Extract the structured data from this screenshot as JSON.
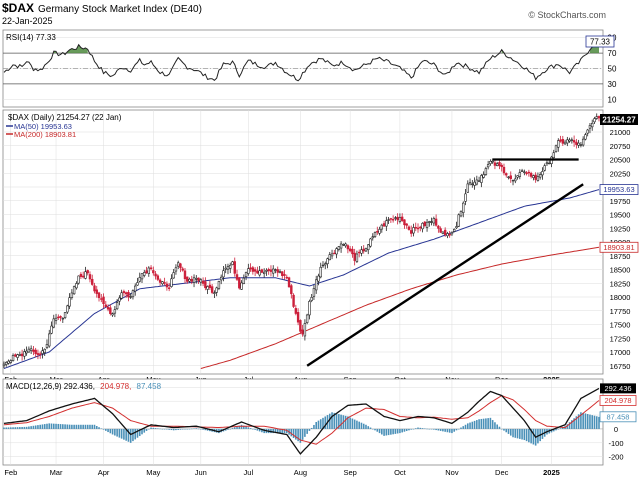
{
  "header": {
    "symbol": "$DAX",
    "name": "Germany Stock Market Index (DE40)",
    "date": "22-Jan-2025",
    "credit": "© StockCharts.com"
  },
  "colors": {
    "price_up": "#222222",
    "price_down": "#cc1f3a",
    "ma50": "#283593",
    "ma200": "#c62828",
    "rsi": "#222222",
    "rsi_fill": "#4e8a3e",
    "macd": "#111111",
    "signal": "#d32f2f",
    "histogram": "#4a90b8",
    "grid": "#dddddd",
    "trendline": "#000000"
  },
  "chart_data": [
    {
      "type": "line",
      "panel": "rsi",
      "title": "RSI(14) 77.33",
      "value_label": "77.33",
      "ylim": [
        0,
        100
      ],
      "ticks": [
        "90",
        "70",
        "50",
        "30",
        "10"
      ],
      "reference_lines": [
        30,
        70
      ],
      "series": [
        {
          "name": "RSI(14)",
          "x": [
            0,
            4,
            8,
            10,
            13,
            16,
            19,
            22,
            26,
            29,
            33,
            37,
            40,
            44,
            48,
            52,
            56,
            60,
            62,
            65,
            69,
            73,
            77,
            81,
            85,
            89,
            93,
            97,
            101,
            104,
            108,
            112,
            116,
            120,
            125,
            130,
            135,
            140,
            145,
            150,
            155,
            160,
            165,
            170,
            175,
            180,
            185,
            190,
            195,
            200,
            205,
            210,
            215,
            220,
            225,
            230,
            235,
            240,
            245,
            250,
            255,
            260,
            263
          ],
          "values": [
            45,
            55,
            52,
            60,
            50,
            48,
            57,
            70,
            68,
            74,
            78,
            76,
            60,
            45,
            40,
            52,
            48,
            60,
            55,
            58,
            45,
            41,
            62,
            52,
            48,
            40,
            35,
            55,
            58,
            42,
            60,
            55,
            52,
            58,
            45,
            36,
            56,
            63,
            54,
            58,
            48,
            55,
            63,
            58,
            50,
            38,
            60,
            55,
            40,
            58,
            52,
            45,
            63,
            72,
            62,
            52,
            38,
            50,
            56,
            45,
            60,
            80,
            77
          ]
        }
      ]
    },
    {
      "type": "candlestick",
      "panel": "price",
      "title": "$DAX (Daily) 21254.27 (22 Jan)",
      "last_label": "21254.27",
      "ylim": [
        16600,
        21400
      ],
      "ticks": [
        "21000",
        "20750",
        "20500",
        "20250",
        "20000",
        "19750",
        "19500",
        "19250",
        "19000",
        "18750",
        "18500",
        "18250",
        "18000",
        "17750",
        "17500",
        "17250",
        "17000",
        "16750"
      ],
      "x_labels": [
        "Feb",
        "Mar",
        "Apr",
        "May",
        "Jun",
        "Jul",
        "Aug",
        "Sep",
        "Oct",
        "Nov",
        "Dec",
        "2025"
      ],
      "x_label_index": [
        3,
        23,
        44,
        66,
        87,
        108,
        131,
        153,
        175,
        198,
        220,
        242
      ],
      "close_anchors": {
        "x": [
          0,
          4,
          8,
          10,
          13,
          16,
          19,
          22,
          26,
          29,
          33,
          37,
          40,
          44,
          48,
          52,
          56,
          60,
          62,
          65,
          69,
          73,
          77,
          81,
          85,
          89,
          93,
          97,
          101,
          104,
          108,
          112,
          116,
          120,
          125,
          129,
          131,
          132,
          133,
          135,
          140,
          145,
          150,
          155,
          160,
          165,
          170,
          175,
          180,
          185,
          190,
          195,
          200,
          205,
          210,
          215,
          220,
          225,
          230,
          235,
          240,
          245,
          250,
          255,
          260,
          263
        ],
        "values": [
          16800,
          16900,
          16950,
          17050,
          17000,
          16950,
          17150,
          17600,
          17650,
          17950,
          18350,
          18450,
          18150,
          17850,
          17700,
          18100,
          18000,
          18400,
          18450,
          18550,
          18250,
          18200,
          18600,
          18300,
          18350,
          18200,
          18100,
          18500,
          18600,
          18200,
          18550,
          18450,
          18450,
          18500,
          18350,
          17700,
          17400,
          17300,
          17500,
          17900,
          18550,
          18800,
          19000,
          18700,
          18900,
          19200,
          19400,
          19450,
          19200,
          19300,
          19400,
          19100,
          19300,
          20050,
          20150,
          20450,
          20350,
          20100,
          20300,
          20150,
          20400,
          20800,
          20850,
          20750,
          21200,
          21254
        ]
      },
      "ma50": {
        "name": "MA(50)",
        "label": "MA(50) 19953.63",
        "value_label": "19953.63",
        "x": [
          0,
          20,
          40,
          60,
          80,
          100,
          120,
          135,
          150,
          170,
          190,
          210,
          230,
          250,
          263
        ],
        "values": [
          16700,
          17000,
          17700,
          18150,
          18250,
          18350,
          18350,
          18200,
          18400,
          18800,
          19050,
          19350,
          19650,
          19800,
          19953
        ]
      },
      "ma200": {
        "name": "MA(200)",
        "label": "MA(200) 18903.81",
        "value_label": "18903.81",
        "x": [
          87,
          100,
          120,
          140,
          160,
          180,
          200,
          220,
          240,
          263
        ],
        "values": [
          16700,
          16850,
          17150,
          17500,
          17850,
          18150,
          18400,
          18600,
          18750,
          18904
        ]
      },
      "annotations": [
        {
          "type": "horizontal-line",
          "x": [
            216,
            254
          ],
          "value": 20500
        },
        {
          "type": "trendline",
          "x": [
            134,
            256
          ],
          "values": [
            16750,
            20050
          ]
        }
      ]
    },
    {
      "type": "bar",
      "panel": "macd",
      "title": "MACD(12,26,9) 292.436, 204.978, 87.458",
      "legend": {
        "macd": "MACD(12,26,9) 292.436,",
        "signal": "204.978,",
        "hist": "87.458"
      },
      "values_labels": [
        "292.436",
        "204.978",
        "87.458"
      ],
      "ylim": [
        -260,
        360
      ],
      "ticks": [
        "300",
        "200",
        "100",
        "0",
        "-100",
        "-200"
      ],
      "x_labels": [
        "Feb",
        "Mar",
        "Apr",
        "May",
        "Jun",
        "Jul",
        "Aug",
        "Sep",
        "Oct",
        "Nov",
        "Dec",
        "2025"
      ],
      "x_label_index": [
        3,
        23,
        44,
        66,
        87,
        108,
        131,
        153,
        175,
        198,
        220,
        242
      ],
      "macd_anchors": {
        "x": [
          0,
          10,
          20,
          30,
          40,
          48,
          56,
          65,
          75,
          85,
          95,
          105,
          115,
          125,
          131,
          138,
          145,
          152,
          160,
          168,
          175,
          183,
          190,
          198,
          205,
          210,
          215,
          220,
          225,
          230,
          235,
          240,
          248,
          255,
          263
        ],
        "values": [
          40,
          60,
          130,
          180,
          220,
          110,
          -40,
          30,
          10,
          20,
          -20,
          50,
          -10,
          -40,
          -180,
          -60,
          90,
          170,
          180,
          90,
          60,
          90,
          80,
          40,
          120,
          200,
          270,
          240,
          150,
          60,
          -60,
          -20,
          30,
          220,
          292
        ]
      },
      "signal_anchors": {
        "x": [
          0,
          10,
          20,
          30,
          40,
          48,
          56,
          65,
          75,
          85,
          95,
          105,
          115,
          125,
          131,
          138,
          145,
          152,
          160,
          168,
          175,
          183,
          190,
          198,
          205,
          210,
          215,
          220,
          225,
          230,
          235,
          240,
          248,
          255,
          263
        ],
        "values": [
          30,
          45,
          90,
          150,
          190,
          150,
          60,
          20,
          20,
          15,
          10,
          20,
          20,
          -10,
          -80,
          -110,
          -30,
          80,
          150,
          140,
          90,
          80,
          85,
          70,
          80,
          130,
          190,
          240,
          210,
          140,
          60,
          20,
          10,
          100,
          205
        ]
      }
    }
  ]
}
